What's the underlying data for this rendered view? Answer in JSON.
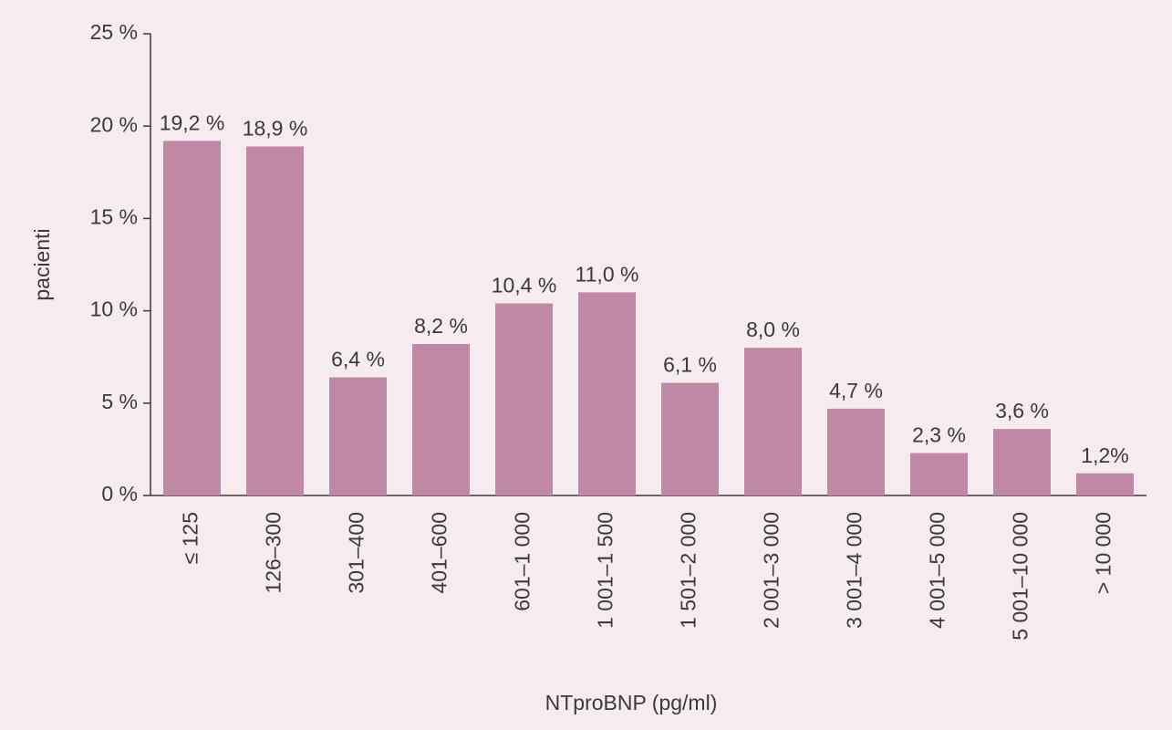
{
  "chart_data": {
    "type": "bar",
    "y_label": "pacienti",
    "x_label": "NTproBNP (pg/ml)",
    "categories": [
      "≤ 125",
      "126–300",
      "301–400",
      "401–600",
      "601–1 000",
      "1 001–1 500",
      "1 501–2 000",
      "2 001–3 000",
      "3 001–4 000",
      "4 001–5 000",
      "5 001–10 000",
      "> 10 000"
    ],
    "values": [
      19.2,
      18.9,
      6.4,
      8.2,
      10.4,
      11.0,
      6.1,
      8.0,
      4.7,
      2.3,
      3.6,
      1.2
    ],
    "value_labels": [
      "19,2 %",
      "18,9 %",
      "6,4 %",
      "8,2 %",
      "10,4 %",
      "11,0 %",
      "6,1 %",
      "8,0 %",
      "4,7 %",
      "2,3 %",
      "3,6 %",
      "1,2%"
    ],
    "color": "#c088a4",
    "ylim": [
      0,
      25
    ],
    "yticks": [
      {
        "value": 0,
        "label": "0 %"
      },
      {
        "value": 5,
        "label": "5 %"
      },
      {
        "value": 10,
        "label": "10 %"
      },
      {
        "value": 15,
        "label": "15 %"
      },
      {
        "value": 20,
        "label": "20 %"
      },
      {
        "value": 25,
        "label": "25 %"
      }
    ]
  }
}
